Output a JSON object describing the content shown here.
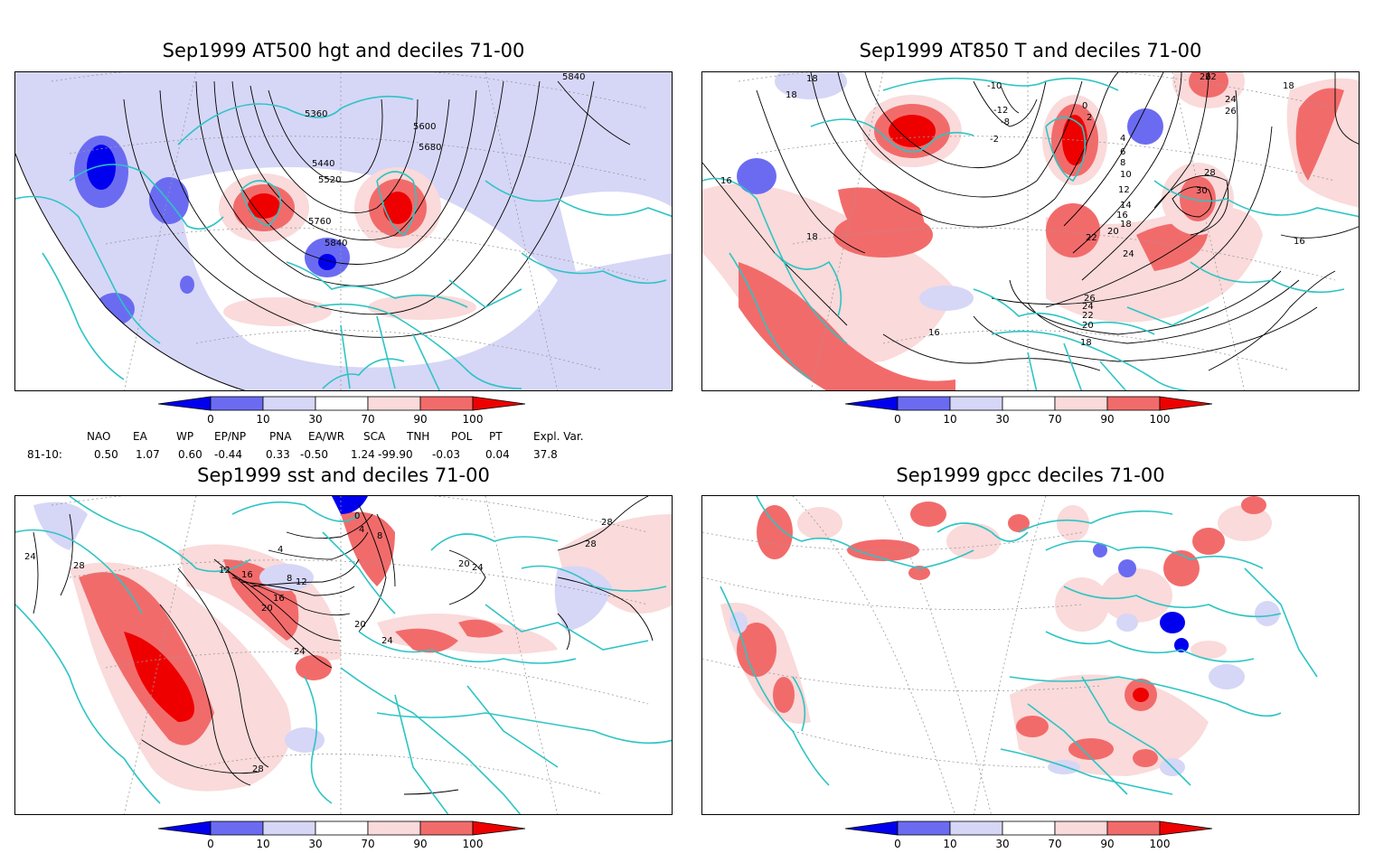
{
  "panels": [
    {
      "id": "p1",
      "title": "Sep1999 AT500 hgt and deciles 71-00",
      "contour_labels": [
        "5840",
        "5360",
        "5600",
        "5680",
        "5440",
        "5520",
        "5760",
        "5840"
      ]
    },
    {
      "id": "p2",
      "title": "Sep1999 AT850 T and deciles 71-00",
      "contour_labels": [
        "18",
        "18",
        "-10",
        "-12",
        "-8",
        "-2",
        "0",
        "2",
        "4",
        "6",
        "8",
        "10",
        "12",
        "14",
        "16",
        "18",
        "20",
        "22",
        "24",
        "26",
        "28",
        "30",
        "22",
        "24",
        "26",
        "16",
        "16",
        "16",
        "18",
        "18",
        "18",
        "20",
        "22",
        "24",
        "26"
      ]
    },
    {
      "id": "p3",
      "title": "Sep1999 sst and deciles 71-00",
      "contour_labels": [
        "24",
        "28",
        "12",
        "16",
        "20",
        "24",
        "28",
        "28",
        "4",
        "8",
        "12",
        "16",
        "20",
        "24",
        "28",
        "20",
        "24",
        "0",
        "4",
        "8"
      ]
    },
    {
      "id": "p4",
      "title": "Sep1999 gpcc deciles 71-00",
      "contour_labels": []
    }
  ],
  "colorbar": {
    "ticks": [
      "0",
      "10",
      "30",
      "70",
      "90",
      "100"
    ],
    "colors": {
      "dark_blue": "#0000ee",
      "mid_blue": "#6b6bf2",
      "light_blue": "#d6d6f7",
      "light_red": "#fadada",
      "mid_red": "#f26b6b",
      "dark_red": "#ee0000"
    }
  },
  "indices": {
    "headers": [
      "NAO",
      "EA",
      "WP",
      "EP/NP",
      "PNA",
      "EA/WR",
      "SCA",
      "TNH",
      "POL",
      "PT",
      "Expl. Var."
    ],
    "row_label": "81-10:",
    "values": [
      "0.50",
      "1.07",
      "0.60",
      "-0.44",
      "0.33",
      "-0.50",
      "1.24",
      "-99.90",
      "-0.03",
      "0.04",
      "37.8"
    ]
  },
  "colors": {
    "coast": "#2ec4c4",
    "contour": "#000000",
    "grid": "#999999"
  }
}
